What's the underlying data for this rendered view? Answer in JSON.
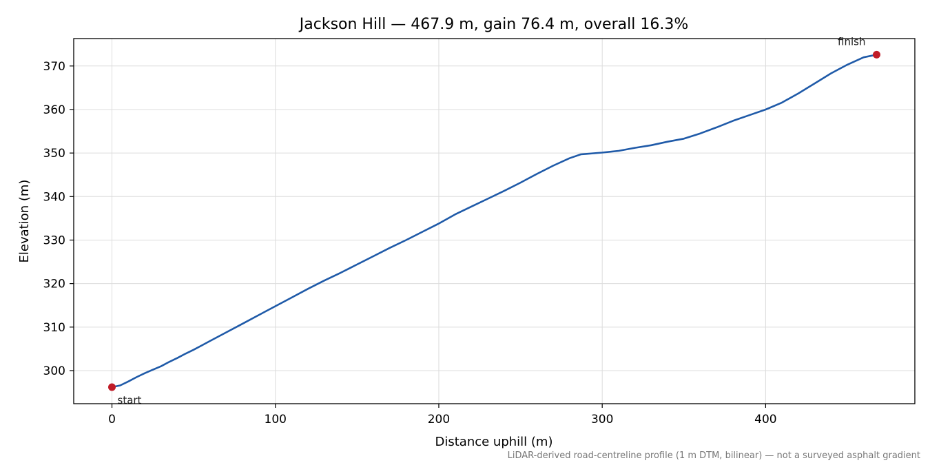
{
  "chart_data": {
    "type": "line",
    "title": "Jackson Hill — 467.9 m, gain 76.4 m, overall 16.3%",
    "xlabel": "Distance uphill (m)",
    "ylabel": "Elevation (m)",
    "xlim": [
      -23.4,
      491.3
    ],
    "ylim": [
      292.4,
      376.3
    ],
    "xticks": [
      0,
      100,
      200,
      300,
      400
    ],
    "yticks": [
      300,
      310,
      320,
      330,
      340,
      350,
      360,
      370
    ],
    "grid": true,
    "series": [
      {
        "color": "#1f5aa8",
        "x": [
          0,
          5,
          10,
          15,
          20,
          25,
          30,
          35,
          40,
          45,
          50,
          55,
          60,
          70,
          80,
          90,
          100,
          110,
          120,
          130,
          140,
          150,
          160,
          170,
          180,
          190,
          200,
          210,
          220,
          230,
          240,
          250,
          260,
          270,
          280,
          287,
          290,
          300,
          310,
          320,
          330,
          340,
          350,
          360,
          370,
          380,
          390,
          400,
          410,
          420,
          430,
          440,
          450,
          460,
          467.9
        ],
        "y": [
          296.2,
          296.6,
          297.5,
          298.5,
          299.4,
          300.2,
          301.0,
          302.0,
          302.9,
          303.9,
          304.8,
          305.8,
          306.8,
          308.8,
          310.8,
          312.8,
          314.8,
          316.8,
          318.8,
          320.7,
          322.5,
          324.4,
          326.3,
          328.2,
          330.0,
          331.9,
          333.8,
          335.9,
          337.7,
          339.5,
          341.3,
          343.2,
          345.2,
          347.1,
          348.8,
          349.7,
          349.8,
          350.1,
          350.5,
          351.2,
          351.8,
          352.6,
          353.3,
          354.5,
          355.9,
          357.4,
          358.7,
          360.0,
          361.6,
          363.7,
          366.0,
          368.3,
          370.3,
          372.0,
          372.6
        ]
      }
    ],
    "markers": [
      {
        "label": "start",
        "x": 0,
        "y": 296.2,
        "color": "#c01c28"
      },
      {
        "label": "finish",
        "x": 467.9,
        "y": 372.6,
        "color": "#c01c28"
      }
    ]
  },
  "footnote": "LiDAR-derived road-centreline profile (1 m DTM, bilinear) — not a surveyed asphalt gradient"
}
